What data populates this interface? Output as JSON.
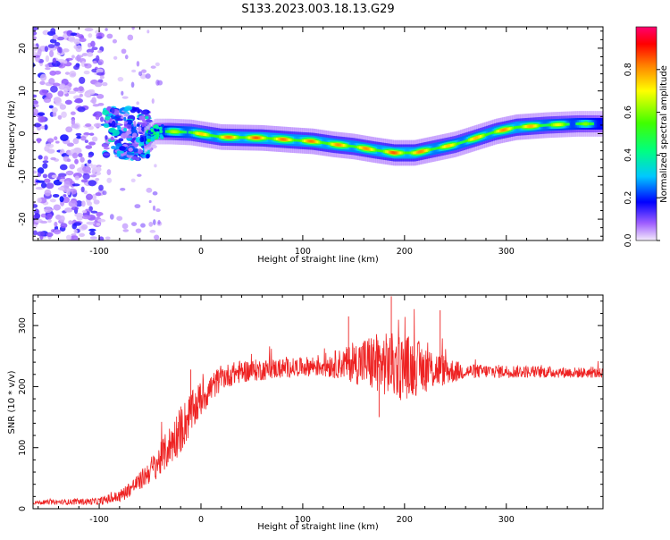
{
  "title": "S133.2023.003.18.13.G29",
  "chart_data": [
    {
      "type": "heatmap",
      "xlabel": "Height of straight line (km)",
      "ylabel": "Frequency (Hz)",
      "xlim": [
        -165,
        395
      ],
      "ylim": [
        -25,
        25
      ],
      "xticks": [
        -100,
        0,
        100,
        200,
        300
      ],
      "yticks": [
        -20,
        -10,
        0,
        10,
        20
      ],
      "grid": false,
      "colorbar": {
        "label": "Normalized spectral amplitude",
        "range": [
          0,
          1
        ],
        "ticks": [
          0.0,
          0.2,
          0.4,
          0.6,
          0.8
        ],
        "colormap": [
          "#e6d6f5",
          "#7a00ff",
          "#0000ff",
          "#00c8ff",
          "#00ff80",
          "#40ff00",
          "#ffff00",
          "#ff8000",
          "#ff0000",
          "#ff0070"
        ]
      },
      "ridge": {
        "x": [
          -55,
          -45,
          -30,
          -10,
          20,
          60,
          90,
          110,
          130,
          150,
          170,
          190,
          210,
          230,
          250,
          270,
          290,
          310,
          340,
          370,
          395
        ],
        "y": [
          -1.5,
          0.5,
          0.5,
          0.3,
          -0.8,
          -1.0,
          -1.5,
          -1.8,
          -2.5,
          -3.0,
          -3.8,
          -4.5,
          -4.5,
          -3.5,
          -2.5,
          -1.0,
          0.5,
          1.5,
          2.0,
          2.3,
          2.3
        ],
        "peak_amplitude": [
          0.4,
          0.55,
          0.7,
          0.8,
          0.9,
          0.95,
          0.9,
          0.92,
          0.9,
          0.88,
          0.9,
          0.95,
          0.93,
          0.85,
          0.82,
          0.85,
          0.88,
          0.92,
          0.8,
          0.7,
          0.6
        ]
      },
      "noise_region_x": [
        -165,
        -95
      ],
      "turbulent_region_x": [
        -95,
        -50
      ]
    },
    {
      "type": "line",
      "xlabel": "Height of straight line (km)",
      "ylabel": "SNR (10 * v/v)",
      "xlim": [
        -165,
        395
      ],
      "ylim": [
        0,
        350
      ],
      "xticks": [
        -100,
        0,
        100,
        200,
        300
      ],
      "yticks": [
        0,
        100,
        200,
        300
      ],
      "grid": false,
      "series_color": "#ee2222",
      "envelope": {
        "x": [
          -165,
          -100,
          -80,
          -60,
          -40,
          -20,
          0,
          20,
          40,
          80,
          120,
          160,
          190,
          220,
          250,
          300,
          395
        ],
        "y": [
          10,
          12,
          20,
          45,
          80,
          130,
          180,
          215,
          225,
          230,
          235,
          240,
          235,
          230,
          225,
          225,
          222
        ]
      },
      "jitter_amplitude": {
        "x": [
          -165,
          -100,
          -60,
          -20,
          20,
          100,
          140,
          170,
          200,
          240,
          260,
          395
        ],
        "y": [
          3,
          6,
          15,
          40,
          20,
          15,
          25,
          50,
          55,
          25,
          12,
          8
        ]
      },
      "notable_peaks": [
        {
          "x": 145,
          "y": 315
        },
        {
          "x": 187,
          "y": 348
        },
        {
          "x": 175,
          "y": 150
        },
        {
          "x": 235,
          "y": 325
        },
        {
          "x": -10,
          "y": 228
        }
      ]
    }
  ]
}
